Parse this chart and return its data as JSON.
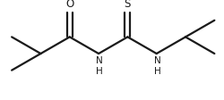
{
  "background_color": "#ffffff",
  "line_color": "#1a1a1a",
  "line_width": 1.6,
  "font_size_label": 7.5,
  "figsize": [
    2.5,
    1.12
  ],
  "dpi": 100,
  "xlim": [
    0,
    10
  ],
  "ylim": [
    0,
    4
  ]
}
